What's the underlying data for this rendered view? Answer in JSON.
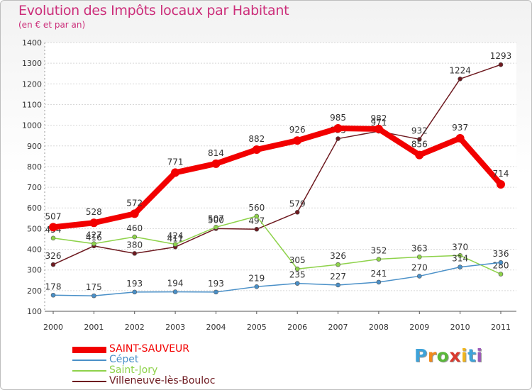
{
  "title": "Evolution des Impôts locaux par Habitant",
  "subtitle": "(en € et par an)",
  "logo": {
    "text": "Proxiti",
    "letters": [
      "P",
      "r",
      "o",
      "x",
      "i",
      "t",
      "i"
    ],
    "colors": [
      "#3fa3d9",
      "#f08a1c",
      "#5ab83a",
      "#d9392e",
      "#f0b51c",
      "#3fa3d9",
      "#9c5ab8"
    ]
  },
  "chart_data": {
    "type": "line",
    "x": [
      "2000",
      "2001",
      "2002",
      "2003",
      "2004",
      "2005",
      "2006",
      "2007",
      "2008",
      "2009",
      "2010",
      "2011"
    ],
    "ylim": [
      100,
      1400
    ],
    "yticks": [
      100,
      200,
      300,
      400,
      500,
      600,
      700,
      800,
      900,
      1000,
      1100,
      1200,
      1300,
      1400
    ],
    "grid": "y",
    "legend_placement": "bottom-left",
    "series": [
      {
        "name": "Villeneuve-lès-Bouloc",
        "color": "#6e1a20",
        "values": [
          326,
          416,
          380,
          411,
          500,
          497,
          579,
          935,
          971,
          932,
          1224,
          1293
        ]
      },
      {
        "name": "Saint-Jory",
        "color": "#8ed24a",
        "values": [
          454,
          427,
          460,
          424,
          507,
          560,
          305,
          326,
          352,
          363,
          370,
          280
        ]
      },
      {
        "name": "Cépet",
        "color": "#4a90c8",
        "values": [
          178,
          175,
          193,
          194,
          193,
          219,
          235,
          227,
          241,
          270,
          314,
          336
        ]
      },
      {
        "name": "SAINT-SAUVEUR",
        "color": "#f20000",
        "values": [
          507,
          528,
          572,
          771,
          814,
          882,
          926,
          985,
          982,
          856,
          937,
          714
        ]
      }
    ],
    "legend_order": [
      "SAINT-SAUVEUR",
      "Cépet",
      "Saint-Jory",
      "Villeneuve-lès-Bouloc"
    ]
  }
}
